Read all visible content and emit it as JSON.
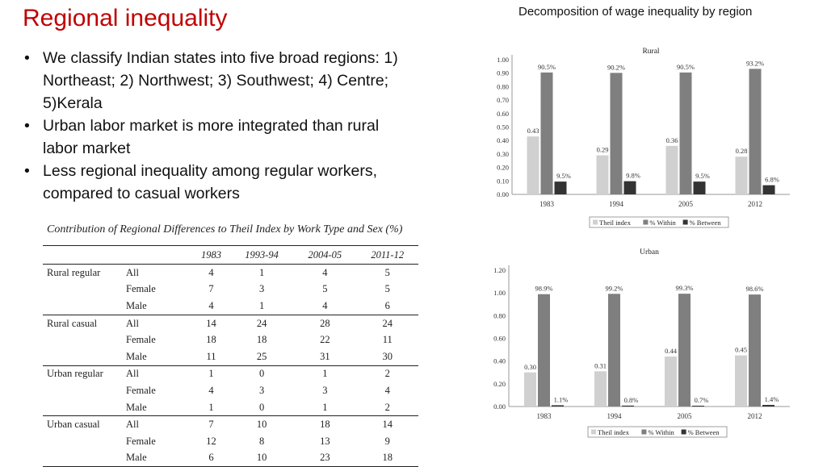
{
  "slide": {
    "title": "Regional inequality",
    "header_right": "Decomposition of wage inequality by region",
    "bullets": [
      "We classify Indian states into five broad regions: 1) Northeast; 2) Northwest; 3) Southwest;  4) Centre; 5)Kerala",
      "Urban labor market is more integrated than rural labor market",
      "Less regional inequality among regular workers, compared to casual workers"
    ]
  },
  "table": {
    "caption": "Contribution of Regional Differences to Theil Index by Work Type and Sex (%)",
    "columns": [
      "1983",
      "1993-94",
      "2004-05",
      "2011-12"
    ],
    "groups": [
      {
        "name": "Rural regular",
        "rows": [
          {
            "label": "All",
            "values": [
              "4",
              "1",
              "4",
              "5"
            ]
          },
          {
            "label": "Female",
            "values": [
              "7",
              "3",
              "5",
              "5"
            ]
          },
          {
            "label": "Male",
            "values": [
              "4",
              "1",
              "4",
              "6"
            ]
          }
        ]
      },
      {
        "name": "Rural casual",
        "rows": [
          {
            "label": "All",
            "values": [
              "14",
              "24",
              "28",
              "24"
            ]
          },
          {
            "label": "Female",
            "values": [
              "18",
              "18",
              "22",
              "11"
            ]
          },
          {
            "label": "Male",
            "values": [
              "11",
              "25",
              "31",
              "30"
            ]
          }
        ]
      },
      {
        "name": "Urban regular",
        "rows": [
          {
            "label": "All",
            "values": [
              "1",
              "0",
              "1",
              "2"
            ]
          },
          {
            "label": "Female",
            "values": [
              "4",
              "3",
              "3",
              "4"
            ]
          },
          {
            "label": "Male",
            "values": [
              "1",
              "0",
              "1",
              "2"
            ]
          }
        ]
      },
      {
        "name": "Urban casual",
        "rows": [
          {
            "label": "All",
            "values": [
              "7",
              "10",
              "18",
              "14"
            ]
          },
          {
            "label": "Female",
            "values": [
              "12",
              "8",
              "13",
              "9"
            ]
          },
          {
            "label": "Male",
            "values": [
              "6",
              "10",
              "23",
              "18"
            ]
          }
        ]
      }
    ]
  },
  "chart_data": [
    {
      "type": "bar",
      "title": "Rural",
      "categories": [
        "1983",
        "1994",
        "2005",
        "2012"
      ],
      "ylim": [
        0,
        1.0
      ],
      "yticks": [
        "0.00",
        "0.10",
        "0.20",
        "0.30",
        "0.40",
        "0.50",
        "0.60",
        "0.70",
        "0.80",
        "0.90",
        "1.00"
      ],
      "series": [
        {
          "name": "Theil index",
          "color": "#d0d0d0",
          "values": [
            0.43,
            0.29,
            0.36,
            0.28
          ],
          "labels": [
            "0.43",
            "0.29",
            "0.36",
            "0.28"
          ]
        },
        {
          "name": "% Within",
          "color": "#7f7f7f",
          "values": [
            0.905,
            0.902,
            0.905,
            0.932
          ],
          "labels": [
            "90.5%",
            "90.2%",
            "90.5%",
            "93.2%"
          ]
        },
        {
          "name": "% Between",
          "color": "#333333",
          "values": [
            0.095,
            0.098,
            0.095,
            0.068
          ],
          "labels": [
            "9.5%",
            "9.8%",
            "9.5%",
            "6.8%"
          ]
        }
      ],
      "legend": "bottom"
    },
    {
      "type": "bar",
      "title": "Urban",
      "categories": [
        "1983",
        "1994",
        "2005",
        "2012"
      ],
      "ylim": [
        0,
        1.2
      ],
      "yticks": [
        "0.00",
        "0.20",
        "0.40",
        "0.60",
        "0.80",
        "1.00",
        "1.20"
      ],
      "series": [
        {
          "name": "Theil index",
          "color": "#d0d0d0",
          "values": [
            0.3,
            0.31,
            0.44,
            0.45
          ],
          "labels": [
            "0.30",
            "0.31",
            "0.44",
            "0.45"
          ]
        },
        {
          "name": "% Within",
          "color": "#7f7f7f",
          "values": [
            0.989,
            0.992,
            0.993,
            0.986
          ],
          "labels": [
            "98.9%",
            "99.2%",
            "99.3%",
            "98.6%"
          ]
        },
        {
          "name": "% Between",
          "color": "#333333",
          "values": [
            0.011,
            0.008,
            0.007,
            0.014
          ],
          "labels": [
            "1.1%",
            "0.8%",
            "0.7%",
            "1.4%"
          ]
        }
      ],
      "legend": "bottom"
    }
  ]
}
